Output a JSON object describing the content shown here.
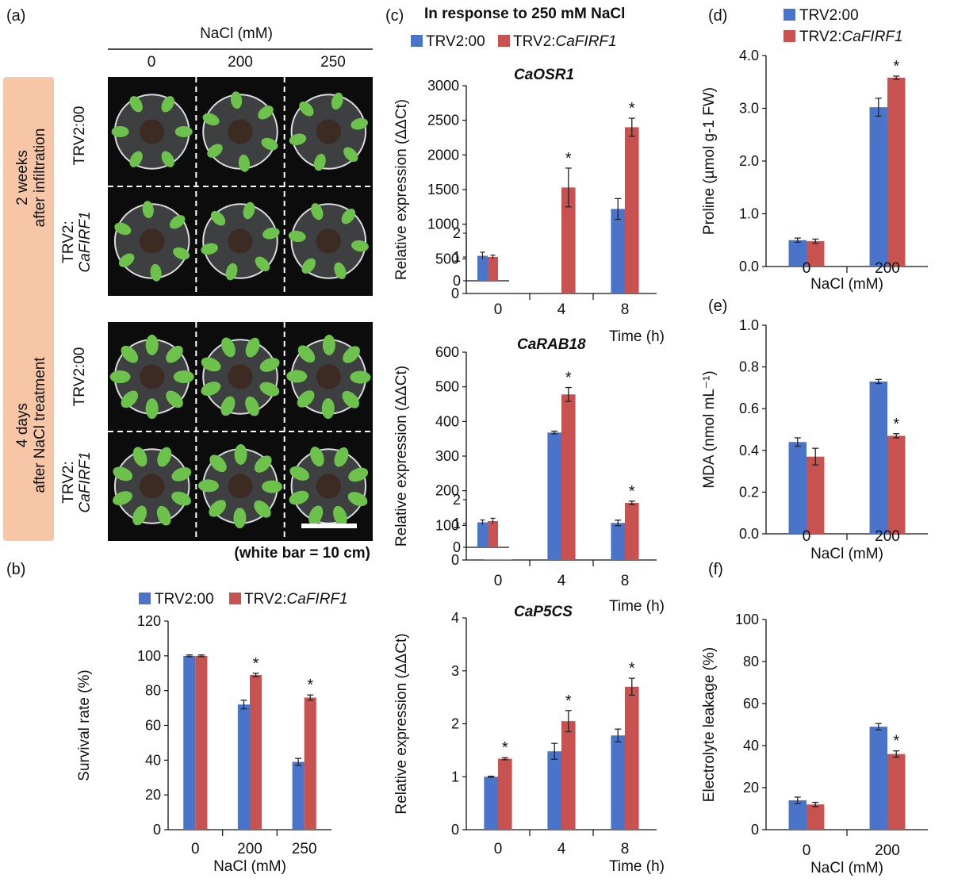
{
  "colors": {
    "tv2_00": "#4a74c9",
    "tv2_cafirf1": "#c8524f",
    "band": "#f7c6a6",
    "photo_bg": "#0c0c0c",
    "plant": "#6cc24a"
  },
  "panel_labels": {
    "a": "(a)",
    "b": "(b)",
    "c": "(c)",
    "d": "(d)",
    "e": "(e)",
    "f": "(f)"
  },
  "legend": {
    "s1": "TRV2:00",
    "s2_prefix": "TRV2:",
    "s2_gene": "CaFIRF1"
  },
  "photo": {
    "header": "NaCl (mM)",
    "columns": [
      "0",
      "200",
      "250"
    ],
    "band_top_line1": "2 weeks",
    "band_top_line2": "after infiltration",
    "band_bottom_line1": "4 days",
    "band_bottom_line2": "after NaCl treatment",
    "row_trv": "TRV2:00",
    "row_caf_prefix": "TRV2:",
    "row_caf_gene": "CaFIRF1",
    "scale_note": "(white bar = 10 cm)"
  },
  "c_header": "In response to 250 mM NaCl",
  "chart_data": [
    {
      "id": "b",
      "type": "bar",
      "categories": [
        "0",
        "200",
        "250"
      ],
      "series": [
        {
          "name": "TRV2:00",
          "values": [
            100,
            72,
            39
          ],
          "errors": [
            0.5,
            2.5,
            2
          ]
        },
        {
          "name": "TRV2:CaFIRF1",
          "values": [
            100,
            89,
            76
          ],
          "errors": [
            0.5,
            1,
            1.5
          ]
        }
      ],
      "significant": [
        false,
        true,
        true
      ],
      "xlabel": "NaCl (mM)",
      "ylabel": "Survival rate (%)",
      "ylim": [
        0,
        120
      ],
      "yticks": [
        "0",
        "20",
        "40",
        "60",
        "80",
        "100",
        "120"
      ],
      "grid": false,
      "legend": "top"
    },
    {
      "id": "c1",
      "type": "bar",
      "title": "CaOSR1",
      "categories": [
        "0",
        "4",
        "8"
      ],
      "series": [
        {
          "name": "TRV2:00",
          "values": [
            1,
            1,
            1220
          ],
          "errors": [
            0,
            0,
            150
          ]
        },
        {
          "name": "TRV2:CaFIRF1",
          "values": [
            1,
            1530,
            2400
          ],
          "errors": [
            0,
            280,
            130
          ]
        }
      ],
      "significant": [
        false,
        true,
        true
      ],
      "xlabel": "Time (h)",
      "ylabel": "Relative expression (ΔΔCt)",
      "ylim": [
        0,
        3000
      ],
      "yticks": [
        "0",
        "500",
        "1000",
        "1500",
        "2000",
        "2500",
        "3000"
      ],
      "grid": false,
      "inset": {
        "values": [
          [
            1.05,
            1.0
          ]
        ],
        "errors": [
          [
            0.15,
            0.08
          ]
        ],
        "ylim": [
          0,
          2
        ],
        "yticks": [
          "0",
          "1",
          "2"
        ]
      }
    },
    {
      "id": "c2",
      "type": "bar",
      "title": "CaRAB18",
      "categories": [
        "0",
        "4",
        "8"
      ],
      "series": [
        {
          "name": "TRV2:00",
          "values": [
            1,
            368,
            107
          ],
          "errors": [
            0,
            4,
            8
          ]
        },
        {
          "name": "TRV2:CaFIRF1",
          "values": [
            1,
            478,
            165
          ],
          "errors": [
            0,
            20,
            5
          ]
        }
      ],
      "significant": [
        false,
        true,
        true
      ],
      "xlabel": "Time (h)",
      "ylabel": "Relative expression (ΔΔCt)",
      "ylim": [
        0,
        600
      ],
      "yticks": [
        "0",
        "100",
        "200",
        "300",
        "400",
        "500",
        "600"
      ],
      "grid": false,
      "inset": {
        "values": [
          [
            1.05,
            1.1
          ]
        ],
        "errors": [
          [
            0.1,
            0.12
          ]
        ],
        "ylim": [
          0,
          2
        ],
        "yticks": [
          "0",
          "1",
          "2"
        ]
      }
    },
    {
      "id": "c3",
      "type": "bar",
      "title": "CaP5CS",
      "categories": [
        "0",
        "4",
        "8"
      ],
      "series": [
        {
          "name": "TRV2:00",
          "values": [
            1.0,
            1.48,
            1.78
          ],
          "errors": [
            0.01,
            0.15,
            0.12
          ]
        },
        {
          "name": "TRV2:CaFIRF1",
          "values": [
            1.34,
            2.05,
            2.7
          ],
          "errors": [
            0.02,
            0.2,
            0.16
          ]
        }
      ],
      "significant": [
        true,
        true,
        true
      ],
      "xlabel": "Time (h)",
      "ylabel": "Relative expression (ΔΔCt)",
      "ylim": [
        0,
        4
      ],
      "yticks": [
        "0",
        "1",
        "2",
        "3",
        "4"
      ],
      "grid": false
    },
    {
      "id": "d",
      "type": "bar",
      "categories": [
        "0",
        "200"
      ],
      "series": [
        {
          "name": "TRV2:00",
          "values": [
            0.5,
            3.02
          ],
          "errors": [
            0.04,
            0.17
          ]
        },
        {
          "name": "TRV2:CaFIRF1",
          "values": [
            0.48,
            3.58
          ],
          "errors": [
            0.04,
            0.03
          ]
        }
      ],
      "significant": [
        false,
        true
      ],
      "xlabel": "NaCl (mM)",
      "ylabel": "Proline (µmol g-1 FW)",
      "ylim": [
        0,
        4
      ],
      "yticks": [
        "0.0",
        "1.0",
        "2.0",
        "3.0",
        "4.0"
      ],
      "grid": false,
      "legend": "top"
    },
    {
      "id": "e",
      "type": "bar",
      "categories": [
        "0",
        "200"
      ],
      "series": [
        {
          "name": "TRV2:00",
          "values": [
            0.44,
            0.73
          ],
          "errors": [
            0.02,
            0.01
          ]
        },
        {
          "name": "TRV2:CaFIRF1",
          "values": [
            0.37,
            0.47
          ],
          "errors": [
            0.04,
            0.01
          ]
        }
      ],
      "significant": [
        false,
        true
      ],
      "xlabel": "NaCl (mM)",
      "ylabel": "MDA (nmol mL⁻¹)",
      "ylim": [
        0,
        1
      ],
      "yticks": [
        "0.0",
        "0.2",
        "0.4",
        "0.6",
        "0.8",
        "1.0"
      ],
      "grid": false
    },
    {
      "id": "f",
      "type": "bar",
      "categories": [
        "0",
        "200"
      ],
      "series": [
        {
          "name": "TRV2:00",
          "values": [
            14,
            49
          ],
          "errors": [
            1.5,
            1.5
          ]
        },
        {
          "name": "TRV2:CaFIRF1",
          "values": [
            12,
            36
          ],
          "errors": [
            1,
            1.5
          ]
        }
      ],
      "significant": [
        false,
        true
      ],
      "xlabel": "NaCl (mM)",
      "ylabel": "Electrolyte leakage (%)",
      "ylim": [
        0,
        100
      ],
      "yticks": [
        "0",
        "20",
        "40",
        "60",
        "80",
        "100"
      ],
      "grid": false
    }
  ]
}
